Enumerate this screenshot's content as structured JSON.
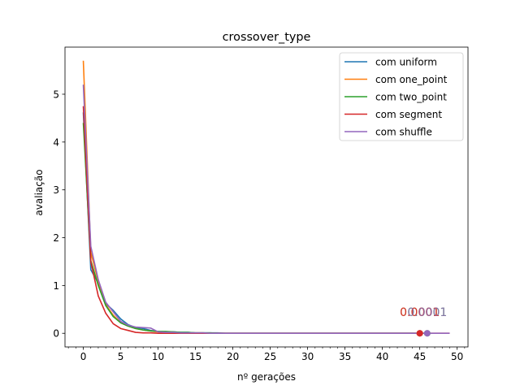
{
  "chart_data": {
    "type": "line",
    "title": "crossover_type",
    "xlabel": "nº gerações",
    "ylabel": "avaliação",
    "xlim": [
      -2.45,
      51.45
    ],
    "ylim": [
      -0.285,
      5.985
    ],
    "xticks": [
      0,
      5,
      10,
      15,
      20,
      25,
      30,
      35,
      40,
      45,
      50
    ],
    "yticks": [
      0,
      1,
      2,
      3,
      4,
      5
    ],
    "legend_position": "top-right",
    "series": [
      {
        "name": "com uniform",
        "color": "#1f77b4",
        "x": [
          0,
          1,
          2,
          3,
          4,
          5,
          6,
          7,
          8,
          9,
          10,
          11,
          12,
          13,
          14,
          15,
          16,
          17,
          18,
          19,
          20,
          21,
          22,
          23,
          24,
          25,
          26,
          27,
          28,
          29,
          30,
          31,
          32,
          33,
          34,
          35,
          36,
          37,
          38,
          39,
          40,
          41,
          42,
          43,
          44,
          45
        ],
        "y": [
          4.62,
          1.33,
          1.05,
          0.62,
          0.48,
          0.3,
          0.18,
          0.12,
          0.1,
          0.06,
          0.04,
          0.03,
          0.03,
          0.02,
          0.02,
          0.01,
          0.01,
          0.01,
          0.01,
          0,
          0,
          0,
          0,
          0,
          0,
          0,
          0,
          0,
          0,
          0,
          0,
          0,
          0,
          0,
          0,
          0,
          0,
          0,
          0,
          0,
          0,
          0,
          0,
          0,
          0,
          0
        ],
        "end_marker": {
          "x": 45,
          "y": 0,
          "label": "0.0001"
        }
      },
      {
        "name": "com one_point",
        "color": "#ff7f0e",
        "x": [
          0,
          1,
          2,
          3,
          4,
          5,
          6,
          7,
          8,
          9,
          10,
          11,
          12,
          13,
          14,
          15,
          16,
          17,
          18,
          19,
          20,
          21,
          22,
          23,
          24,
          25,
          26,
          27,
          28,
          29,
          30,
          31,
          32,
          33,
          34,
          35,
          36,
          37,
          38,
          39,
          40,
          41,
          42,
          43,
          44,
          45
        ],
        "y": [
          5.7,
          1.7,
          1.08,
          0.6,
          0.38,
          0.22,
          0.15,
          0.1,
          0.07,
          0.05,
          0.03,
          0.02,
          0.02,
          0.01,
          0.01,
          0.01,
          0.01,
          0,
          0,
          0,
          0,
          0,
          0,
          0,
          0,
          0,
          0,
          0,
          0,
          0,
          0,
          0,
          0,
          0,
          0,
          0,
          0,
          0,
          0,
          0,
          0,
          0,
          0,
          0,
          0,
          0
        ],
        "end_marker": {
          "x": 45,
          "y": 0,
          "label": "0.0001"
        }
      },
      {
        "name": "com two_point",
        "color": "#2ca02c",
        "x": [
          0,
          1,
          2,
          3,
          4,
          5,
          6,
          7,
          8,
          9,
          10,
          11,
          12,
          13,
          14,
          15,
          16,
          17,
          18,
          19,
          20,
          21,
          22,
          23,
          24,
          25,
          26,
          27,
          28,
          29,
          30,
          31,
          32,
          33,
          34,
          35,
          36,
          37,
          38,
          39,
          40,
          41,
          42,
          43,
          44,
          45,
          46
        ],
        "y": [
          4.4,
          1.52,
          1.0,
          0.58,
          0.35,
          0.22,
          0.15,
          0.1,
          0.07,
          0.05,
          0.04,
          0.04,
          0.03,
          0.02,
          0.02,
          0.01,
          0.01,
          0.01,
          0,
          0,
          0,
          0,
          0,
          0,
          0,
          0,
          0,
          0,
          0,
          0,
          0,
          0,
          0,
          0,
          0,
          0,
          0,
          0,
          0,
          0,
          0,
          0,
          0,
          0,
          0,
          0,
          0
        ],
        "end_marker": {
          "x": 46,
          "y": 0,
          "label": "0.0001"
        }
      },
      {
        "name": "com segment",
        "color": "#d62728",
        "x": [
          0,
          1,
          2,
          3,
          4,
          5,
          6,
          7,
          8,
          9,
          10,
          11,
          12,
          13,
          14,
          15,
          16,
          17,
          18,
          19,
          20,
          21,
          22,
          23,
          24,
          25,
          26,
          27,
          28,
          29,
          30,
          31,
          32,
          33,
          34,
          35,
          36,
          37,
          38,
          39,
          40,
          41,
          42,
          43,
          44,
          45,
          46,
          47,
          48,
          49
        ],
        "y": [
          4.75,
          1.5,
          0.78,
          0.42,
          0.2,
          0.1,
          0.06,
          0.02,
          0.01,
          0.01,
          0,
          0,
          0,
          0,
          0,
          0,
          0,
          0,
          0,
          0,
          0,
          0,
          0,
          0,
          0,
          0,
          0,
          0,
          0,
          0,
          0,
          0,
          0,
          0,
          0,
          0,
          0,
          0,
          0,
          0,
          0,
          0,
          0,
          0,
          0,
          0,
          0,
          0,
          0,
          0
        ],
        "end_marker": {
          "x": 45,
          "y": 0,
          "label": "0.0001"
        }
      },
      {
        "name": "com shuffle",
        "color": "#9467bd",
        "x": [
          0,
          1,
          2,
          3,
          4,
          5,
          6,
          7,
          8,
          9,
          10,
          11,
          12,
          13,
          14,
          15,
          16,
          17,
          18,
          19,
          20,
          21,
          22,
          23,
          24,
          25,
          26,
          27,
          28,
          29,
          30,
          31,
          32,
          33,
          34,
          35,
          36,
          37,
          38,
          39,
          40,
          41,
          42,
          43,
          44,
          45,
          46,
          47,
          48,
          49
        ],
        "y": [
          5.2,
          1.82,
          1.12,
          0.65,
          0.45,
          0.25,
          0.17,
          0.13,
          0.12,
          0.11,
          0.03,
          0.02,
          0.02,
          0.01,
          0.01,
          0.01,
          0.01,
          0,
          0,
          0,
          0,
          0,
          0,
          0,
          0,
          0,
          0,
          0,
          0,
          0,
          0,
          0,
          0,
          0,
          0,
          0,
          0,
          0,
          0,
          0,
          0,
          0,
          0,
          0,
          0,
          0,
          0,
          0,
          0,
          0
        ],
        "end_marker": {
          "x": 46,
          "y": 0,
          "label": "0.0001"
        }
      }
    ]
  }
}
